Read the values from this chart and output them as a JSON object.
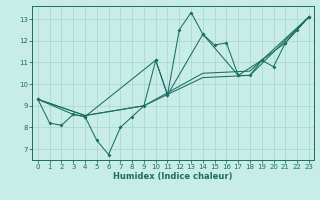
{
  "xlabel": "Humidex (Indice chaleur)",
  "bg_color": "#c8ece6",
  "grid_color": "#a8d4ce",
  "line_color": "#1a6e62",
  "xlim_min": -0.5,
  "xlim_max": 23.4,
  "ylim_min": 6.5,
  "ylim_max": 13.6,
  "xticks": [
    0,
    1,
    2,
    3,
    4,
    5,
    6,
    7,
    8,
    9,
    10,
    11,
    12,
    13,
    14,
    15,
    16,
    17,
    18,
    19,
    20,
    21,
    22,
    23
  ],
  "yticks": [
    7,
    8,
    9,
    10,
    11,
    12,
    13
  ],
  "main_x": [
    0,
    1,
    2,
    3,
    4,
    5,
    6,
    7,
    8,
    9,
    10,
    11,
    12,
    13,
    14,
    15,
    16,
    17,
    18,
    19,
    20,
    21,
    22,
    23
  ],
  "main_y": [
    9.3,
    8.2,
    8.1,
    8.6,
    8.5,
    7.4,
    6.75,
    8.0,
    8.5,
    9.0,
    11.1,
    9.5,
    12.5,
    13.3,
    12.3,
    11.8,
    11.9,
    10.4,
    10.4,
    11.1,
    10.8,
    11.9,
    12.5,
    13.1
  ],
  "line2_x": [
    0,
    3,
    4,
    10,
    11,
    14,
    17,
    19,
    21,
    23
  ],
  "line2_y": [
    9.3,
    8.6,
    8.5,
    11.1,
    9.5,
    12.3,
    10.4,
    11.1,
    11.9,
    13.1
  ],
  "trend1_x": [
    0,
    4,
    9,
    14,
    18,
    23
  ],
  "trend1_y": [
    9.3,
    8.55,
    9.0,
    10.5,
    10.6,
    13.1
  ],
  "trend2_x": [
    0,
    4,
    9,
    14,
    18,
    23
  ],
  "trend2_y": [
    9.3,
    8.55,
    9.0,
    10.3,
    10.4,
    13.1
  ]
}
